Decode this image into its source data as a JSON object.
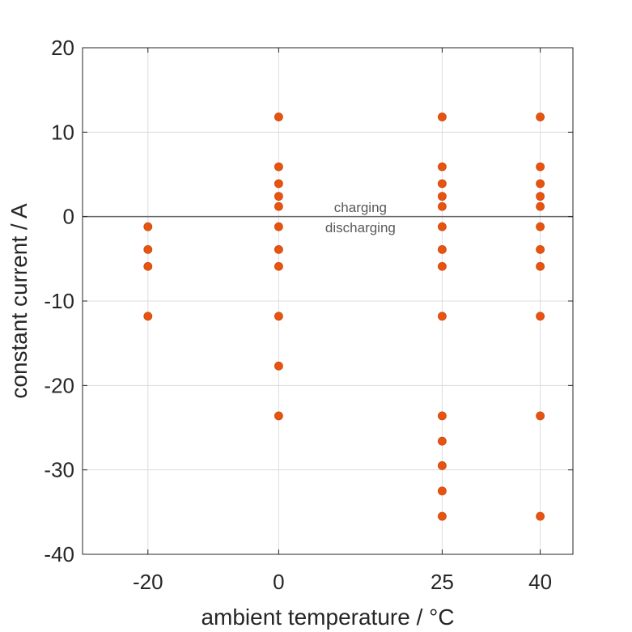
{
  "chart_data": {
    "type": "scatter",
    "xlabel": "ambient temperature / °C",
    "ylabel": "constant current / A",
    "xlim": [
      -30,
      45
    ],
    "ylim": [
      -40,
      20
    ],
    "xticks": [
      -20,
      0,
      25,
      40
    ],
    "xtick_labels": [
      "-20",
      "0",
      "25",
      "40"
    ],
    "yticks": [
      -40,
      -30,
      -20,
      -10,
      0,
      10,
      20
    ],
    "ytick_labels": [
      "-40",
      "-30",
      "-20",
      "-10",
      "0",
      "10",
      "20"
    ],
    "grid": true,
    "marker_color": "#E8540F",
    "reference_line": {
      "y": 0,
      "color": "#666666"
    },
    "annotations": [
      {
        "text": "charging",
        "x": 12.5,
        "y": 1.1
      },
      {
        "text": "discharging",
        "x": 12.5,
        "y": -1.3
      }
    ],
    "points": [
      {
        "x": -20,
        "y": -1.2
      },
      {
        "x": -20,
        "y": -3.9
      },
      {
        "x": -20,
        "y": -5.9
      },
      {
        "x": -20,
        "y": -11.8
      },
      {
        "x": 0,
        "y": 11.8
      },
      {
        "x": 0,
        "y": 5.9
      },
      {
        "x": 0,
        "y": 3.9
      },
      {
        "x": 0,
        "y": 2.4
      },
      {
        "x": 0,
        "y": 1.2
      },
      {
        "x": 0,
        "y": -1.2
      },
      {
        "x": 0,
        "y": -3.9
      },
      {
        "x": 0,
        "y": -5.9
      },
      {
        "x": 0,
        "y": -11.8
      },
      {
        "x": 0,
        "y": -17.7
      },
      {
        "x": 0,
        "y": -23.6
      },
      {
        "x": 25,
        "y": 11.8
      },
      {
        "x": 25,
        "y": 5.9
      },
      {
        "x": 25,
        "y": 3.9
      },
      {
        "x": 25,
        "y": 2.4
      },
      {
        "x": 25,
        "y": 1.2
      },
      {
        "x": 25,
        "y": -1.2
      },
      {
        "x": 25,
        "y": -3.9
      },
      {
        "x": 25,
        "y": -5.9
      },
      {
        "x": 25,
        "y": -11.8
      },
      {
        "x": 25,
        "y": -23.6
      },
      {
        "x": 25,
        "y": -26.6
      },
      {
        "x": 25,
        "y": -29.5
      },
      {
        "x": 25,
        "y": -32.5
      },
      {
        "x": 25,
        "y": -35.5
      },
      {
        "x": 40,
        "y": 11.8
      },
      {
        "x": 40,
        "y": 5.9
      },
      {
        "x": 40,
        "y": 3.9
      },
      {
        "x": 40,
        "y": 2.4
      },
      {
        "x": 40,
        "y": 1.2
      },
      {
        "x": 40,
        "y": -1.2
      },
      {
        "x": 40,
        "y": -3.9
      },
      {
        "x": 40,
        "y": -5.9
      },
      {
        "x": 40,
        "y": -11.8
      },
      {
        "x": 40,
        "y": -23.6
      },
      {
        "x": 40,
        "y": -35.5
      }
    ]
  }
}
